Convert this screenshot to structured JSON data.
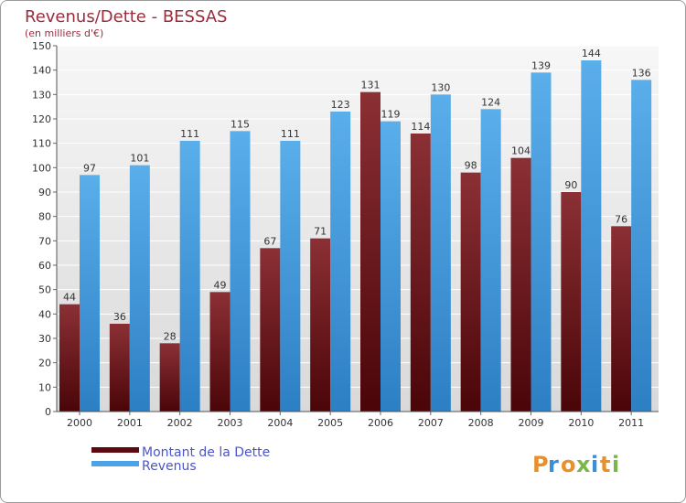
{
  "chart_data": {
    "type": "bar",
    "title": "Revenus/Dette - BESSAS",
    "subtitle": "(en milliers d'€)",
    "categories": [
      "2000",
      "2001",
      "2002",
      "2003",
      "2004",
      "2005",
      "2006",
      "2007",
      "2008",
      "2009",
      "2010",
      "2011"
    ],
    "series": [
      {
        "name": "Montant de la Dette",
        "values": [
          44,
          36,
          28,
          49,
          67,
          71,
          131,
          114,
          98,
          104,
          90,
          76
        ],
        "color": "#7a1a1f"
      },
      {
        "name": "Revenus",
        "values": [
          97,
          101,
          111,
          115,
          111,
          123,
          119,
          130,
          124,
          139,
          144,
          136
        ],
        "color": "#4aa3e6"
      }
    ],
    "yticks": [
      0,
      10,
      20,
      30,
      40,
      50,
      60,
      70,
      80,
      90,
      100,
      110,
      120,
      130,
      140,
      150
    ],
    "ylim": [
      0,
      150
    ],
    "grid": true,
    "legend_position": "bottom-left"
  },
  "colors": {
    "title": "#9b2c3c",
    "legend_text": "#4a55c8",
    "plot_background": "#e8e8e8"
  },
  "watermark": "Proxiti"
}
